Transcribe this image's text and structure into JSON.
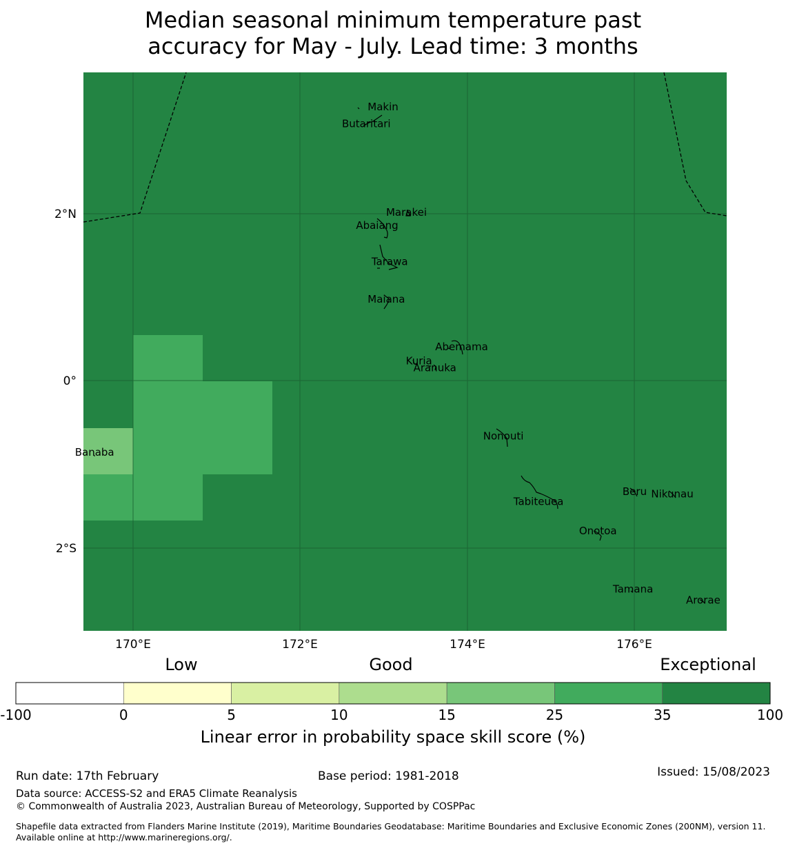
{
  "title": {
    "line1": "Median seasonal minimum temperature past",
    "line2": "accuracy for May - July. Lead time: 3 months"
  },
  "map": {
    "background_color": "#238443",
    "lat_labels": [
      "2°N",
      "0°",
      "2°S"
    ],
    "lon_labels": [
      "170°E",
      "172°E",
      "174°E",
      "176°E"
    ],
    "islands": [
      {
        "name": "Makin",
        "lon": 172.99,
        "lat": 3.27
      },
      {
        "name": "Butaritari",
        "lon": 172.79,
        "lat": 3.07
      },
      {
        "name": "Marakei",
        "lon": 173.27,
        "lat": 2.01
      },
      {
        "name": "Abaiang",
        "lon": 172.92,
        "lat": 1.85
      },
      {
        "name": "Tarawa",
        "lon": 173.07,
        "lat": 1.42
      },
      {
        "name": "Maiana",
        "lon": 173.03,
        "lat": 0.97
      },
      {
        "name": "Abemama",
        "lon": 173.93,
        "lat": 0.4
      },
      {
        "name": "Kuria",
        "lon": 173.42,
        "lat": 0.23
      },
      {
        "name": "Aranuka",
        "lon": 173.61,
        "lat": 0.15
      },
      {
        "name": "Nonouti",
        "lon": 174.43,
        "lat": -0.67
      },
      {
        "name": "Banaba",
        "lon": 169.54,
        "lat": -0.86
      },
      {
        "name": "Beru",
        "lon": 176.0,
        "lat": -1.33
      },
      {
        "name": "Nikunau",
        "lon": 176.45,
        "lat": -1.36
      },
      {
        "name": "Tabiteuea",
        "lon": 174.85,
        "lat": -1.45
      },
      {
        "name": "Onotoa",
        "lon": 175.56,
        "lat": -1.8
      },
      {
        "name": "Tamana",
        "lon": 175.98,
        "lat": -2.5
      },
      {
        "name": "Arorae",
        "lon": 176.82,
        "lat": -2.63
      }
    ]
  },
  "colorbar": {
    "categories": [
      "Low",
      "Good",
      "Exceptional"
    ],
    "ticks": [
      "-100",
      "0",
      "5",
      "10",
      "15",
      "25",
      "35",
      "100"
    ],
    "colors": [
      "#ffffff",
      "#ffffcc",
      "#d9f0a3",
      "#addd8e",
      "#78c679",
      "#41ab5d",
      "#238443"
    ],
    "title": "Linear error in probability space skill score (%)"
  },
  "footer": {
    "run_date": "Run date: 17th February",
    "base_period": "Base period: 1981-2018",
    "issued": "Issued: 15/08/2023",
    "data_source": "Data source: ACCESS-S2 and ERA5 Climate Reanalysis",
    "copyright": "© Commonwealth of Australia 2023, Australian Bureau of Meteorology, Supported by COSPPac",
    "shapefile": "Shapefile data extracted from Flanders Marine Institute (2019), Maritime Boundaries Geodatabase: Maritime Boundaries and Exclusive Economic Zones (200NM), version 11. Available online at http://www.marineregions.org/."
  }
}
